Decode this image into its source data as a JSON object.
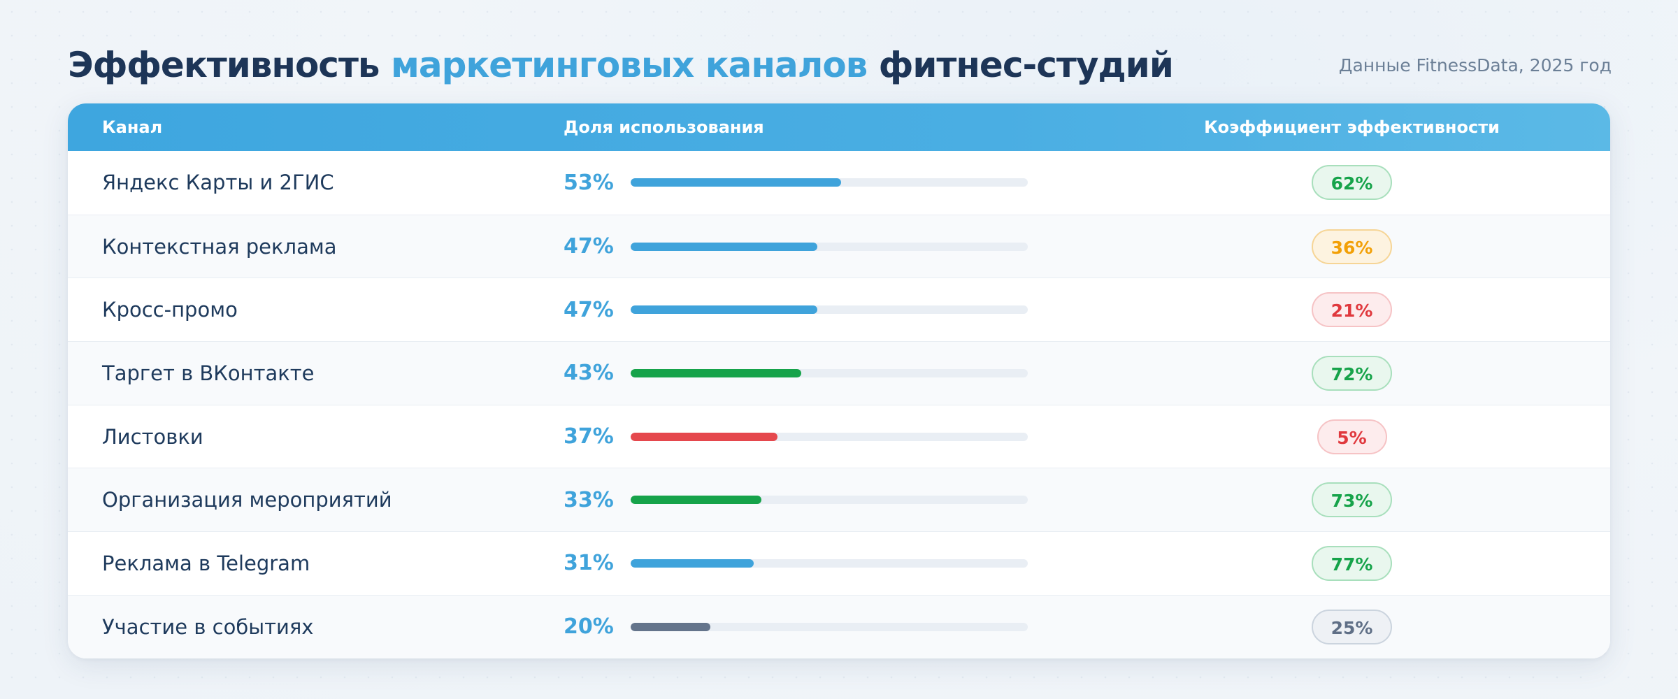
{
  "header": {
    "title_part1": "Эффективность ",
    "title_accent": "маркетинговых каналов",
    "title_part2": " фитнес-студий",
    "source": "Данные FitnessData, 2025 год"
  },
  "colors": {
    "blue": "#3fa3db",
    "green": "#16a34a",
    "red": "#e5484d",
    "gray": "#64748b",
    "orange": "#f59e0b"
  },
  "badge_styles": {
    "green": {
      "text": "#16a34a",
      "bg": "#e9f7ee",
      "border": "#a8dfbc"
    },
    "orange": {
      "text": "#f2a007",
      "bg": "#fdf3e0",
      "border": "#f6d596"
    },
    "red": {
      "text": "#e0393e",
      "bg": "#fdeced",
      "border": "#f6c3c5"
    },
    "gray": {
      "text": "#5f6f86",
      "bg": "#eef1f5",
      "border": "#cbd4de"
    }
  },
  "chart_data": {
    "type": "table",
    "columns": [
      "Канал",
      "Доля использования",
      "Коэффициент эффективности"
    ],
    "rows": [
      {
        "channel": "Яндекс Карты и 2ГИС",
        "share": 53,
        "share_label": "53%",
        "bar_color": "blue",
        "efficiency": 62,
        "efficiency_label": "62%",
        "badge": "green"
      },
      {
        "channel": "Контекстная реклама",
        "share": 47,
        "share_label": "47%",
        "bar_color": "blue",
        "efficiency": 36,
        "efficiency_label": "36%",
        "badge": "orange"
      },
      {
        "channel": "Кросс-промо",
        "share": 47,
        "share_label": "47%",
        "bar_color": "blue",
        "efficiency": 21,
        "efficiency_label": "21%",
        "badge": "red"
      },
      {
        "channel": "Таргет в ВКонтакте",
        "share": 43,
        "share_label": "43%",
        "bar_color": "green",
        "efficiency": 72,
        "efficiency_label": "72%",
        "badge": "green"
      },
      {
        "channel": "Листовки",
        "share": 37,
        "share_label": "37%",
        "bar_color": "red",
        "efficiency": 5,
        "efficiency_label": "5%",
        "badge": "red"
      },
      {
        "channel": "Организация мероприятий",
        "share": 33,
        "share_label": "33%",
        "bar_color": "green",
        "efficiency": 73,
        "efficiency_label": "73%",
        "badge": "green"
      },
      {
        "channel": "Реклама в Telegram",
        "share": 31,
        "share_label": "31%",
        "bar_color": "blue",
        "efficiency": 77,
        "efficiency_label": "77%",
        "badge": "green"
      },
      {
        "channel": "Участие в событиях",
        "share": 20,
        "share_label": "20%",
        "bar_color": "gray",
        "efficiency": 25,
        "efficiency_label": "25%",
        "badge": "gray"
      }
    ],
    "share_axis_max": 100
  }
}
